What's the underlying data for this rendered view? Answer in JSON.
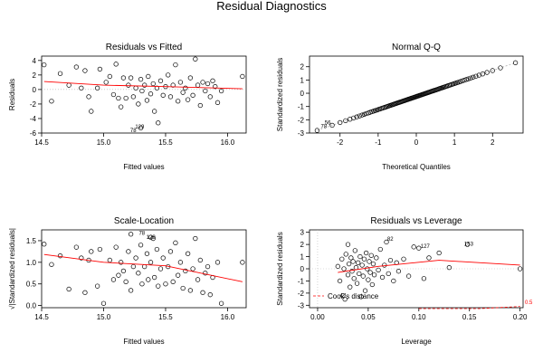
{
  "figure_title": "Residual Diagnostics",
  "chart_data": [
    {
      "type": "scatter",
      "title": "Residuals vs Fitted",
      "xlabel": "Fitted values",
      "ylabel": "Residuals",
      "xlim": [
        14.5,
        16.15
      ],
      "ylim": [
        -6,
        4.6
      ],
      "xticks": [
        14.5,
        15.0,
        15.5,
        16.0
      ],
      "xtick_labels": [
        "14.5",
        "15.0",
        "15.5",
        "16.0"
      ],
      "yticks": [
        -6,
        -4,
        -2,
        0,
        2,
        4
      ],
      "ytick_labels": [
        "-6",
        "-4",
        "-2",
        "0",
        "2",
        "4"
      ],
      "points": [
        [
          14.52,
          3.4
        ],
        [
          14.58,
          -1.6
        ],
        [
          14.65,
          2.2
        ],
        [
          14.72,
          0.6
        ],
        [
          14.78,
          3.1
        ],
        [
          14.82,
          0.2
        ],
        [
          14.85,
          2.6
        ],
        [
          14.88,
          -1.0
        ],
        [
          14.9,
          -3.0
        ],
        [
          14.95,
          0.2
        ],
        [
          14.97,
          2.8
        ],
        [
          15.02,
          1.0
        ],
        [
          15.05,
          1.8
        ],
        [
          15.08,
          -0.7
        ],
        [
          15.1,
          3.5
        ],
        [
          15.12,
          -1.2
        ],
        [
          15.14,
          -2.4
        ],
        [
          15.16,
          1.6
        ],
        [
          15.18,
          -1.2
        ],
        [
          15.2,
          0.6
        ],
        [
          15.22,
          1.6
        ],
        [
          15.24,
          -1.0
        ],
        [
          15.26,
          0.2
        ],
        [
          15.28,
          -2.0
        ],
        [
          15.3,
          1.4
        ],
        [
          15.31,
          -0.2
        ],
        [
          15.33,
          0.6
        ],
        [
          15.35,
          -1.5
        ],
        [
          15.36,
          1.8
        ],
        [
          15.38,
          -0.6
        ],
        [
          15.4,
          0.8
        ],
        [
          15.41,
          -3.0
        ],
        [
          15.43,
          0.2
        ],
        [
          15.44,
          -4.6
        ],
        [
          15.46,
          1.2
        ],
        [
          15.48,
          -0.8
        ],
        [
          15.5,
          0.4
        ],
        [
          15.52,
          2.0
        ],
        [
          15.54,
          -1.0
        ],
        [
          15.56,
          0.6
        ],
        [
          15.58,
          3.4
        ],
        [
          15.6,
          -1.6
        ],
        [
          15.62,
          1.0
        ],
        [
          15.64,
          -0.4
        ],
        [
          15.66,
          0.2
        ],
        [
          15.68,
          -1.4
        ],
        [
          15.7,
          1.6
        ],
        [
          15.72,
          -0.8
        ],
        [
          15.74,
          4.2
        ],
        [
          15.76,
          0.6
        ],
        [
          15.78,
          -2.2
        ],
        [
          15.8,
          1.0
        ],
        [
          15.82,
          -0.2
        ],
        [
          15.84,
          0.8
        ],
        [
          15.86,
          -1.0
        ],
        [
          15.88,
          1.2
        ],
        [
          15.9,
          0.4
        ],
        [
          15.92,
          -1.8
        ],
        [
          15.95,
          -0.2
        ],
        [
          16.12,
          1.8
        ],
        [
          15.3,
          -5.3
        ]
      ],
      "point_labels": [
        {
          "x": 15.24,
          "y": -5.1,
          "text": "129"
        },
        {
          "x": 15.2,
          "y": -5.6,
          "text": "78"
        }
      ],
      "smooth_line": [
        [
          14.52,
          1.1
        ],
        [
          15.0,
          0.6
        ],
        [
          15.5,
          0.4
        ],
        [
          16.12,
          0.1
        ]
      ],
      "reference_line": 0
    },
    {
      "type": "scatter",
      "title": "Normal Q-Q",
      "xlabel": "Theoretical Quantiles",
      "ylabel": "Standardized residuals",
      "xlim": [
        -2.8,
        2.8
      ],
      "ylim": [
        -3.0,
        2.8
      ],
      "xticks": [
        -2,
        -1,
        0,
        1,
        2
      ],
      "xtick_labels": [
        "-2",
        "-1",
        "0",
        "1",
        "2"
      ],
      "yticks": [
        -3,
        -2,
        -1,
        0,
        1,
        2
      ],
      "ytick_labels": [
        "-3",
        "-2",
        "-1",
        "0",
        "1",
        "2"
      ],
      "qq_range": [
        -2.6,
        2.6
      ],
      "qq_y_range": [
        -2.8,
        2.3
      ],
      "qq_count": 110,
      "point_labels": [
        {
          "x": -2.45,
          "y": -2.2,
          "text": "56"
        },
        {
          "x": -2.55,
          "y": -2.5,
          "text": "78"
        }
      ]
    },
    {
      "type": "scatter",
      "title": "Scale-Location",
      "xlabel": "Fitted values",
      "ylabel": "√|Standardized residuals|",
      "xlim": [
        14.5,
        16.15
      ],
      "ylim": [
        -0.05,
        1.75
      ],
      "xticks": [
        14.5,
        15.0,
        15.5,
        16.0
      ],
      "xtick_labels": [
        "14.5",
        "15.0",
        "15.5",
        "16.0"
      ],
      "yticks": [
        0.0,
        0.5,
        1.0,
        1.5
      ],
      "ytick_labels": [
        "0.0",
        "0.5",
        "1.0",
        "1.5"
      ],
      "points": [
        [
          14.52,
          1.42
        ],
        [
          14.58,
          0.95
        ],
        [
          14.65,
          1.15
        ],
        [
          14.72,
          0.38
        ],
        [
          14.78,
          1.35
        ],
        [
          14.82,
          1.1
        ],
        [
          14.85,
          0.3
        ],
        [
          14.88,
          1.05
        ],
        [
          14.9,
          1.25
        ],
        [
          14.95,
          0.45
        ],
        [
          14.97,
          1.3
        ],
        [
          15.0,
          0.05
        ],
        [
          15.05,
          1.05
        ],
        [
          15.08,
          0.6
        ],
        [
          15.1,
          1.35
        ],
        [
          15.12,
          0.7
        ],
        [
          15.14,
          1.0
        ],
        [
          15.16,
          0.8
        ],
        [
          15.18,
          0.55
        ],
        [
          15.2,
          1.25
        ],
        [
          15.22,
          0.35
        ],
        [
          15.24,
          0.9
        ],
        [
          15.26,
          1.1
        ],
        [
          15.28,
          0.75
        ],
        [
          15.3,
          1.4
        ],
        [
          15.31,
          0.5
        ],
        [
          15.33,
          0.9
        ],
        [
          15.35,
          1.2
        ],
        [
          15.36,
          0.6
        ],
        [
          15.38,
          1.0
        ],
        [
          15.4,
          1.55
        ],
        [
          15.41,
          0.65
        ],
        [
          15.43,
          1.3
        ],
        [
          15.44,
          0.45
        ],
        [
          15.46,
          0.85
        ],
        [
          15.48,
          1.1
        ],
        [
          15.5,
          0.5
        ],
        [
          15.52,
          0.9
        ],
        [
          15.54,
          1.25
        ],
        [
          15.56,
          0.55
        ],
        [
          15.58,
          1.45
        ],
        [
          15.6,
          0.7
        ],
        [
          15.62,
          1.0
        ],
        [
          15.64,
          0.4
        ],
        [
          15.66,
          0.8
        ],
        [
          15.68,
          1.2
        ],
        [
          15.7,
          0.35
        ],
        [
          15.72,
          0.85
        ],
        [
          15.74,
          1.55
        ],
        [
          15.76,
          0.6
        ],
        [
          15.78,
          1.05
        ],
        [
          15.8,
          0.3
        ],
        [
          15.82,
          0.75
        ],
        [
          15.84,
          0.9
        ],
        [
          15.86,
          0.25
        ],
        [
          15.88,
          0.65
        ],
        [
          15.92,
          1.0
        ],
        [
          15.95,
          0.05
        ],
        [
          16.12,
          1.0
        ],
        [
          15.22,
          1.65
        ],
        [
          15.38,
          1.58
        ]
      ],
      "point_labels": [
        {
          "x": 15.27,
          "y": 1.68,
          "text": "78"
        },
        {
          "x": 15.33,
          "y": 1.58,
          "text": "129"
        }
      ],
      "smooth_line": [
        [
          14.52,
          1.18
        ],
        [
          15.0,
          1.0
        ],
        [
          15.5,
          0.92
        ],
        [
          16.12,
          0.55
        ]
      ]
    },
    {
      "type": "scatter",
      "title": "Residuals vs Leverage",
      "xlabel": "Leverage",
      "ylabel": "Standardized residuals",
      "xlim": [
        -0.008,
        0.203
      ],
      "ylim": [
        -3.2,
        3.2
      ],
      "xticks": [
        0.0,
        0.05,
        0.1,
        0.15,
        0.2
      ],
      "xtick_labels": [
        "0.00",
        "0.05",
        "0.10",
        "0.15",
        "0.20"
      ],
      "yticks": [
        -3,
        -2,
        -1,
        0,
        1,
        2,
        3
      ],
      "ytick_labels": [
        "-3",
        "-2",
        "-1",
        "0",
        "1",
        "2",
        "3"
      ],
      "points": [
        [
          0.02,
          0.2
        ],
        [
          0.022,
          -1.0
        ],
        [
          0.024,
          0.8
        ],
        [
          0.025,
          -2.2
        ],
        [
          0.026,
          0.0
        ],
        [
          0.028,
          1.2
        ],
        [
          0.03,
          -0.5
        ],
        [
          0.031,
          0.4
        ],
        [
          0.032,
          -1.5
        ],
        [
          0.033,
          0.9
        ],
        [
          0.034,
          -0.2
        ],
        [
          0.035,
          0.6
        ],
        [
          0.036,
          -0.8
        ],
        [
          0.037,
          1.5
        ],
        [
          0.038,
          0.1
        ],
        [
          0.039,
          -1.2
        ],
        [
          0.04,
          0.5
        ],
        [
          0.041,
          -0.4
        ],
        [
          0.042,
          1.0
        ],
        [
          0.043,
          -2.3
        ],
        [
          0.044,
          0.3
        ],
        [
          0.045,
          -0.6
        ],
        [
          0.046,
          0.8
        ],
        [
          0.047,
          -1.8
        ],
        [
          0.048,
          1.3
        ],
        [
          0.049,
          0.0
        ],
        [
          0.05,
          -0.9
        ],
        [
          0.051,
          0.6
        ],
        [
          0.052,
          -0.3
        ],
        [
          0.053,
          1.1
        ],
        [
          0.054,
          -1.3
        ],
        [
          0.055,
          0.4
        ],
        [
          0.056,
          -0.5
        ],
        [
          0.058,
          0.9
        ],
        [
          0.06,
          -0.1
        ],
        [
          0.062,
          1.6
        ],
        [
          0.064,
          -0.7
        ],
        [
          0.066,
          0.3
        ],
        [
          0.068,
          2.2
        ],
        [
          0.07,
          -0.4
        ],
        [
          0.072,
          0.7
        ],
        [
          0.075,
          -1.0
        ],
        [
          0.078,
          0.5
        ],
        [
          0.08,
          -0.2
        ],
        [
          0.085,
          0.8
        ],
        [
          0.09,
          -0.6
        ],
        [
          0.095,
          1.8
        ],
        [
          0.1,
          1.7
        ],
        [
          0.105,
          -0.8
        ],
        [
          0.11,
          0.9
        ],
        [
          0.12,
          1.3
        ],
        [
          0.13,
          0.1
        ],
        [
          0.148,
          2.0
        ],
        [
          0.2,
          0.0
        ],
        [
          0.027,
          -2.5
        ],
        [
          0.03,
          2.0
        ]
      ],
      "point_labels": [
        {
          "x": 0.067,
          "y": 2.45,
          "text": "82"
        },
        {
          "x": 0.1,
          "y": 1.85,
          "text": "127"
        },
        {
          "x": 0.143,
          "y": 2.05,
          "text": "153"
        }
      ],
      "smooth_line": [
        [
          0.02,
          -0.3
        ],
        [
          0.06,
          0.2
        ],
        [
          0.12,
          0.7
        ],
        [
          0.2,
          0.3
        ]
      ],
      "cooks_curve": [
        [
          0.1,
          -6
        ],
        [
          0.13,
          -4.5
        ],
        [
          0.16,
          -3.6
        ],
        [
          0.2,
          -3.1
        ]
      ],
      "cooks_label": "0.5",
      "legend": "Cook's distance"
    }
  ]
}
